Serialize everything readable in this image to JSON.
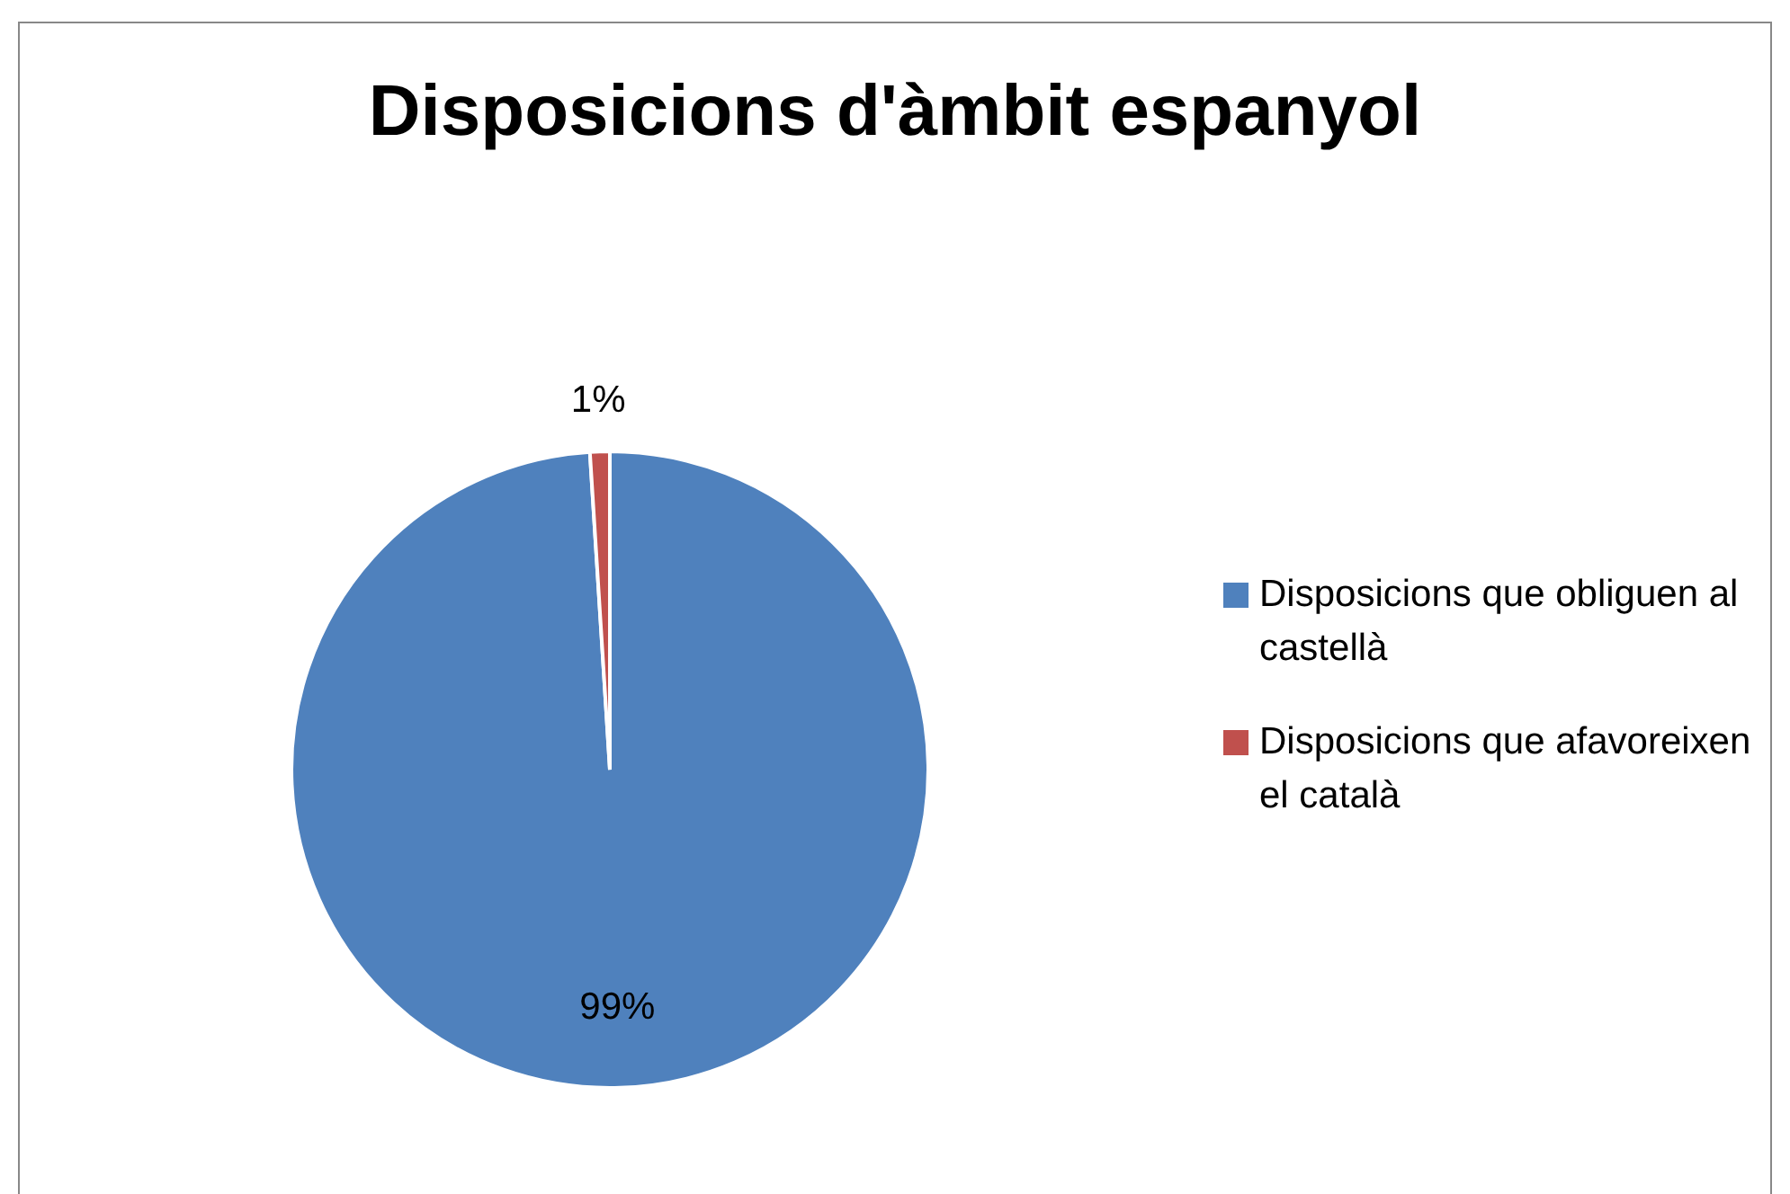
{
  "chart_data": {
    "type": "pie",
    "title": "Disposicions d'àmbit espanyol",
    "categories": [
      "Disposicions que obliguen al castellà",
      "Disposicions que afavoreixen el català"
    ],
    "values": [
      99,
      1
    ],
    "colors": [
      "#4f81bd",
      "#c0504d"
    ],
    "value_labels": [
      "99%",
      "1%"
    ],
    "legend": "right"
  }
}
